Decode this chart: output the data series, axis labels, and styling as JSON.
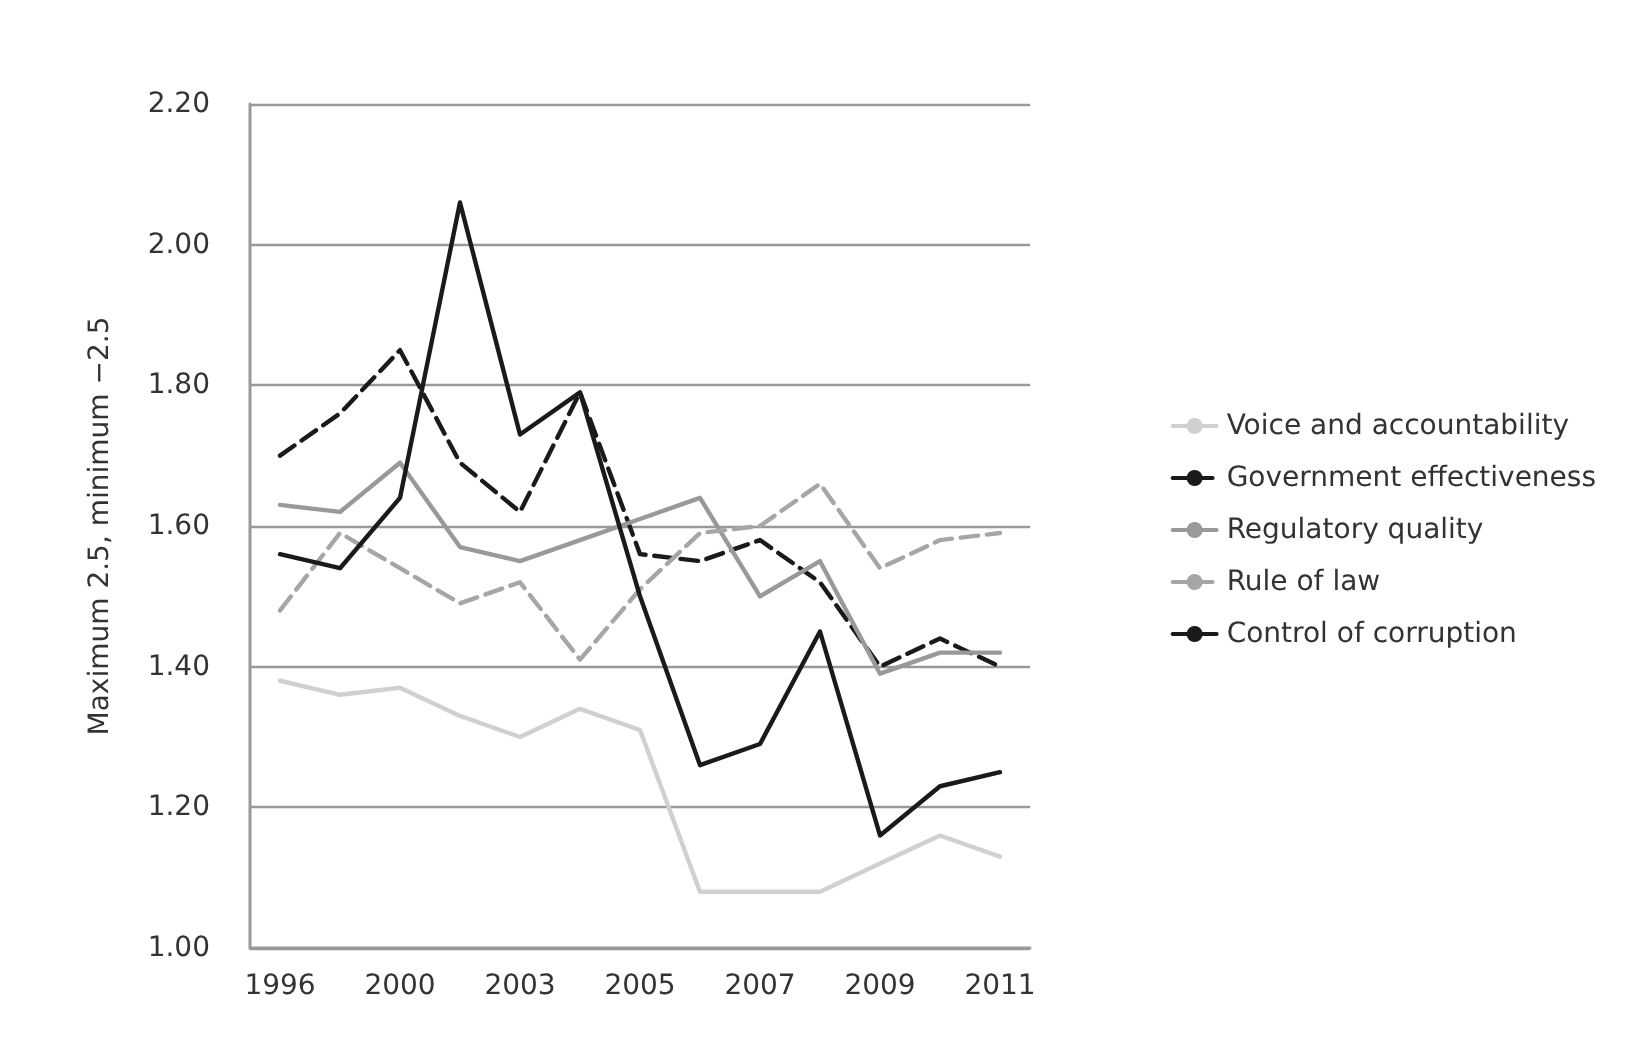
{
  "chart_data": {
    "type": "line",
    "ylabel": "Maximum 2.5, minimum −2.5",
    "categories": [
      "1996",
      null,
      "2000",
      null,
      "2003",
      null,
      "2005",
      null,
      "2007",
      null,
      "2009",
      null,
      "2011"
    ],
    "series": [
      {
        "name": "Voice and accountability",
        "color": "#d0d0d0",
        "line_style": "solid",
        "values": [
          1.38,
          1.36,
          1.37,
          1.33,
          1.3,
          1.34,
          1.31,
          1.08,
          1.08,
          1.08,
          1.12,
          1.16,
          1.13
        ]
      },
      {
        "name": "Government effectiveness",
        "color": "#1a1a1a",
        "line_style": "dashed",
        "values": [
          1.7,
          1.76,
          1.85,
          1.69,
          1.62,
          1.79,
          1.56,
          1.55,
          1.58,
          1.52,
          1.4,
          1.44,
          1.4
        ]
      },
      {
        "name": "Regulatory quality",
        "color": "#999999",
        "line_style": "solid",
        "values": [
          1.63,
          1.62,
          1.69,
          1.57,
          1.55,
          1.58,
          1.61,
          1.64,
          1.5,
          1.55,
          1.39,
          1.42,
          1.42
        ]
      },
      {
        "name": "Rule of law",
        "color": "#a6a6a6",
        "line_style": "dashed",
        "values": [
          1.48,
          1.59,
          1.54,
          1.49,
          1.52,
          1.41,
          1.51,
          1.59,
          1.6,
          1.66,
          1.54,
          1.58,
          1.59
        ]
      },
      {
        "name": "Control of corruption",
        "color": "#1a1a1a",
        "line_style": "solid",
        "values": [
          1.56,
          1.54,
          1.64,
          2.06,
          1.73,
          1.79,
          1.5,
          1.26,
          1.29,
          1.45,
          1.16,
          1.23,
          1.25
        ]
      }
    ],
    "ylim": [
      1.0,
      2.2
    ],
    "yticks": [
      {
        "value": 1.0,
        "label": "1.00"
      },
      {
        "value": 1.2,
        "label": "1.20"
      },
      {
        "value": 1.4,
        "label": "1.40"
      },
      {
        "value": 1.6,
        "label": "1.60"
      },
      {
        "value": 1.8,
        "label": "1.80"
      },
      {
        "value": 2.0,
        "label": "2.00"
      },
      {
        "value": 2.2,
        "label": "2.20"
      }
    ],
    "grid": "y",
    "legend": "right",
    "marker": "none"
  }
}
